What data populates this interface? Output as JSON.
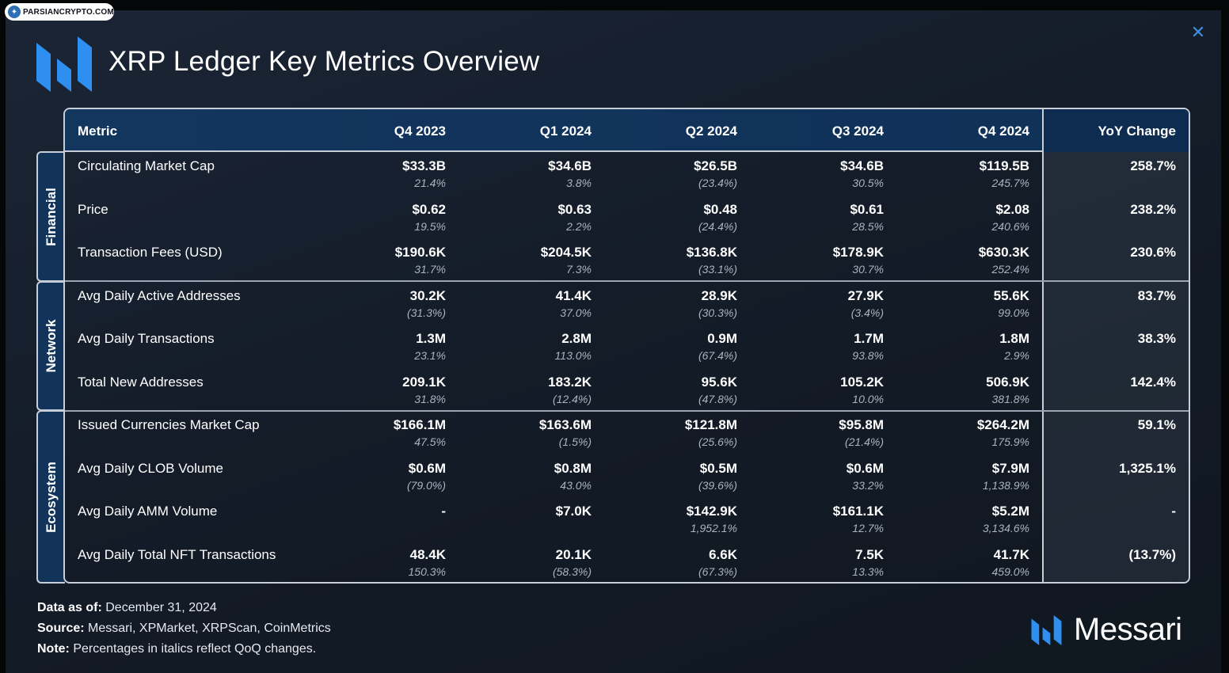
{
  "watermark": "PARSIANCRYPTO.COM",
  "title": "XRP Ledger Key Metrics Overview",
  "columns": [
    "Metric",
    "Q4 2023",
    "Q1 2024",
    "Q2 2024",
    "Q3 2024",
    "Q4 2024",
    "YoY Change"
  ],
  "sections": [
    {
      "label": "Financial",
      "rows": [
        {
          "metric": "Circulating Market Cap",
          "values": [
            "$33.3B",
            "$34.6B",
            "$26.5B",
            "$34.6B",
            "$119.5B"
          ],
          "changes": [
            "21.4%",
            "3.8%",
            "(23.4%)",
            "30.5%",
            "245.7%"
          ],
          "yoy": "258.7%"
        },
        {
          "metric": "Price",
          "values": [
            "$0.62",
            "$0.63",
            "$0.48",
            "$0.61",
            "$2.08"
          ],
          "changes": [
            "19.5%",
            "2.2%",
            "(24.4%)",
            "28.5%",
            "240.6%"
          ],
          "yoy": "238.2%"
        },
        {
          "metric": "Transaction Fees (USD)",
          "values": [
            "$190.6K",
            "$204.5K",
            "$136.8K",
            "$178.9K",
            "$630.3K"
          ],
          "changes": [
            "31.7%",
            "7.3%",
            "(33.1%)",
            "30.7%",
            "252.4%"
          ],
          "yoy": "230.6%"
        }
      ]
    },
    {
      "label": "Network",
      "rows": [
        {
          "metric": "Avg Daily Active Addresses",
          "values": [
            "30.2K",
            "41.4K",
            "28.9K",
            "27.9K",
            "55.6K"
          ],
          "changes": [
            "(31.3%)",
            "37.0%",
            "(30.3%)",
            "(3.4%)",
            "99.0%"
          ],
          "yoy": "83.7%"
        },
        {
          "metric": "Avg Daily Transactions",
          "values": [
            "1.3M",
            "2.8M",
            "0.9M",
            "1.7M",
            "1.8M"
          ],
          "changes": [
            "23.1%",
            "113.0%",
            "(67.4%)",
            "93.8%",
            "2.9%"
          ],
          "yoy": "38.3%"
        },
        {
          "metric": "Total New Addresses",
          "values": [
            "209.1K",
            "183.2K",
            "95.6K",
            "105.2K",
            "506.9K"
          ],
          "changes": [
            "31.8%",
            "(12.4%)",
            "(47.8%)",
            "10.0%",
            "381.8%"
          ],
          "yoy": "142.4%"
        }
      ]
    },
    {
      "label": "Ecosystem",
      "rows": [
        {
          "metric": "Issued Currencies Market Cap",
          "values": [
            "$166.1M",
            "$163.6M",
            "$121.8M",
            "$95.8M",
            "$264.2M"
          ],
          "changes": [
            "47.5%",
            "(1.5%)",
            "(25.6%)",
            "(21.4%)",
            "175.9%"
          ],
          "yoy": "59.1%"
        },
        {
          "metric": "Avg Daily CLOB Volume",
          "values": [
            "$0.6M",
            "$0.8M",
            "$0.5M",
            "$0.6M",
            "$7.9M"
          ],
          "changes": [
            "(79.0%)",
            "43.0%",
            "(39.6%)",
            "33.2%",
            "1,138.9%"
          ],
          "yoy": "1,325.1%"
        },
        {
          "metric": "Avg Daily AMM Volume",
          "values": [
            "-",
            "$7.0K",
            "$142.9K",
            "$161.1K",
            "$5.2M"
          ],
          "changes": [
            "",
            "",
            "1,952.1%",
            "12.7%",
            "3,134.6%"
          ],
          "yoy": "-"
        },
        {
          "metric": "Avg Daily Total NFT Transactions",
          "values": [
            "48.4K",
            "20.1K",
            "6.6K",
            "7.5K",
            "41.7K"
          ],
          "changes": [
            "150.3%",
            "(58.3%)",
            "(67.3%)",
            "13.3%",
            "459.0%"
          ],
          "yoy": "(13.7%)"
        }
      ]
    }
  ],
  "footer": {
    "data_as_of_label": "Data as of:",
    "data_as_of": "December 31, 2024",
    "source_label": "Source:",
    "source": "Messari, XPMarket, XRPScan, CoinMetrics",
    "note_label": "Note:",
    "note": "Percentages in italics reflect QoQ changes."
  },
  "brand": "Messari",
  "colors": {
    "accent": "#2e8ff0",
    "header": "#13365e",
    "border": "#c8ced8"
  }
}
